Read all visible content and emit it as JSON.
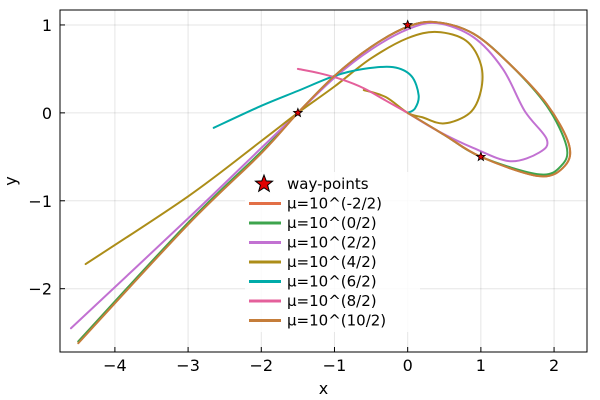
{
  "chart_data": {
    "type": "line",
    "title": "",
    "xlabel": "x",
    "ylabel": "y",
    "xlim": [
      -4.75,
      2.45
    ],
    "ylim": [
      -2.72,
      1.17
    ],
    "xticks": [
      -4,
      -3,
      -2,
      -1,
      0,
      1,
      2
    ],
    "yticks": [
      -2,
      -1,
      0,
      1
    ],
    "xtick_labels": [
      "−4",
      "−3",
      "−2",
      "−1",
      "0",
      "1",
      "2"
    ],
    "ytick_labels": [
      "−2",
      "−1",
      "0",
      "1"
    ],
    "grid": true,
    "legend_position": "bottom-center",
    "waypoints": {
      "name": "way-points",
      "color": "#e00000",
      "points": [
        [
          -1.5,
          0.0
        ],
        [
          0.0,
          1.0
        ],
        [
          1.0,
          -0.5
        ]
      ]
    },
    "series": [
      {
        "name": "μ=10^(-2/2)",
        "color": "#e26f46",
        "points": [
          [
            -4.5,
            -2.6
          ],
          [
            -3.0,
            -1.25
          ],
          [
            -2.0,
            -0.45
          ],
          [
            -1.5,
            0.0
          ],
          [
            -1.0,
            0.42
          ],
          [
            -0.5,
            0.75
          ],
          [
            0.0,
            0.98
          ],
          [
            0.4,
            1.03
          ],
          [
            0.9,
            0.9
          ],
          [
            1.4,
            0.55
          ],
          [
            1.9,
            0.1
          ],
          [
            2.2,
            -0.35
          ],
          [
            2.15,
            -0.6
          ],
          [
            1.8,
            -0.72
          ],
          [
            1.0,
            -0.5
          ],
          [
            0.5,
            -0.25
          ],
          [
            0.0,
            0.0
          ]
        ]
      },
      {
        "name": "μ=10^(0/2)",
        "color": "#3da44d",
        "points": [
          [
            -4.5,
            -2.6
          ],
          [
            -3.0,
            -1.25
          ],
          [
            -2.0,
            -0.44
          ],
          [
            -1.5,
            0.0
          ],
          [
            -1.0,
            0.42
          ],
          [
            -0.5,
            0.75
          ],
          [
            0.0,
            0.98
          ],
          [
            0.4,
            1.03
          ],
          [
            0.9,
            0.9
          ],
          [
            1.4,
            0.55
          ],
          [
            1.9,
            0.08
          ],
          [
            2.17,
            -0.38
          ],
          [
            2.1,
            -0.6
          ],
          [
            1.8,
            -0.7
          ],
          [
            1.0,
            -0.5
          ],
          [
            0.5,
            -0.25
          ],
          [
            0.0,
            0.0
          ]
        ]
      },
      {
        "name": "μ=10^(2/2)",
        "color": "#c271d2",
        "points": [
          [
            -4.6,
            -2.45
          ],
          [
            -3.0,
            -1.2
          ],
          [
            -2.0,
            -0.4
          ],
          [
            -1.5,
            0.0
          ],
          [
            -1.0,
            0.4
          ],
          [
            -0.5,
            0.72
          ],
          [
            0.0,
            0.95
          ],
          [
            0.4,
            1.02
          ],
          [
            0.9,
            0.86
          ],
          [
            1.3,
            0.5
          ],
          [
            1.6,
            0.02
          ],
          [
            1.9,
            -0.3
          ],
          [
            1.8,
            -0.45
          ],
          [
            1.4,
            -0.55
          ],
          [
            0.9,
            -0.4
          ],
          [
            0.4,
            -0.2
          ],
          [
            0.0,
            0.0
          ]
        ]
      },
      {
        "name": "μ=10^(4/2)",
        "color": "#ac8d18",
        "points": [
          [
            -4.4,
            -1.72
          ],
          [
            -3.0,
            -0.95
          ],
          [
            -2.0,
            -0.32
          ],
          [
            -1.5,
            0.0
          ],
          [
            -1.0,
            0.3
          ],
          [
            -0.5,
            0.62
          ],
          [
            0.0,
            0.85
          ],
          [
            0.4,
            0.92
          ],
          [
            0.8,
            0.82
          ],
          [
            1.0,
            0.55
          ],
          [
            1.0,
            0.25
          ],
          [
            0.85,
            0.0
          ],
          [
            0.5,
            -0.12
          ],
          [
            0.2,
            -0.05
          ],
          [
            0.0,
            0.0
          ],
          [
            -0.3,
            0.18
          ],
          [
            -0.6,
            0.26
          ]
        ]
      },
      {
        "name": "μ=10^(6/2)",
        "color": "#00aba9",
        "points": [
          [
            -2.65,
            -0.17
          ],
          [
            -2.0,
            0.08
          ],
          [
            -1.5,
            0.25
          ],
          [
            -1.0,
            0.42
          ],
          [
            -0.6,
            0.5
          ],
          [
            -0.2,
            0.52
          ],
          [
            0.05,
            0.42
          ],
          [
            0.15,
            0.2
          ],
          [
            0.1,
            0.05
          ],
          [
            0.0,
            0.0
          ]
        ]
      },
      {
        "name": "μ=10^(8/2)",
        "color": "#e4609b",
        "points": [
          [
            -1.5,
            0.5
          ],
          [
            -1.2,
            0.45
          ],
          [
            -0.9,
            0.38
          ],
          [
            -0.6,
            0.28
          ],
          [
            -0.3,
            0.14
          ],
          [
            0.0,
            0.0
          ]
        ]
      },
      {
        "name": "μ=10^(10/2)",
        "color": "#c57d3a",
        "points": [
          [
            -4.5,
            -2.62
          ],
          [
            -3.0,
            -1.27
          ],
          [
            -2.0,
            -0.46
          ],
          [
            -1.5,
            0.0
          ],
          [
            -1.0,
            0.42
          ],
          [
            -0.5,
            0.75
          ],
          [
            0.0,
            0.98
          ],
          [
            0.4,
            1.03
          ],
          [
            0.9,
            0.9
          ],
          [
            1.4,
            0.55
          ],
          [
            1.9,
            0.1
          ],
          [
            2.2,
            -0.35
          ],
          [
            2.15,
            -0.6
          ],
          [
            1.8,
            -0.72
          ],
          [
            1.0,
            -0.5
          ],
          [
            0.5,
            -0.25
          ],
          [
            0.0,
            0.0
          ]
        ]
      }
    ]
  }
}
